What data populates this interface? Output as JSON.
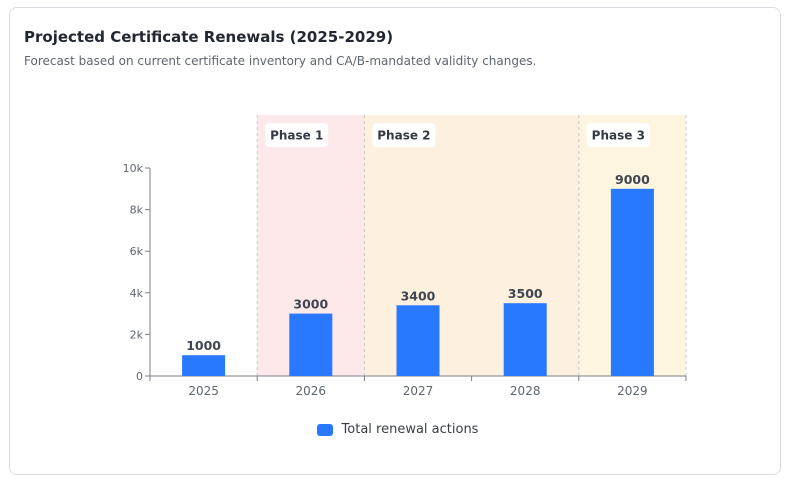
{
  "card": {
    "title": "Projected Certificate Renewals (2025-2029)",
    "subtitle": "Forecast based on current certificate inventory and CA/B-mandated validity changes."
  },
  "chart_data": {
    "type": "bar",
    "categories": [
      "2025",
      "2026",
      "2027",
      "2028",
      "2029"
    ],
    "series": [
      {
        "name": "Total renewal actions",
        "values": [
          1000,
          3000,
          3400,
          3500,
          9000
        ],
        "color": "#2979ff"
      }
    ],
    "ylim": [
      0,
      10000
    ],
    "yticks": [
      {
        "value": 0,
        "label": "0"
      },
      {
        "value": 2000,
        "label": "2k"
      },
      {
        "value": 4000,
        "label": "4k"
      },
      {
        "value": 6000,
        "label": "6k"
      },
      {
        "value": 8000,
        "label": "8k"
      },
      {
        "value": 10000,
        "label": "10k"
      }
    ],
    "data_labels": [
      "1000",
      "3000",
      "3400",
      "3500",
      "9000"
    ],
    "grid": false,
    "legend_position": "bottom-center",
    "phases": [
      {
        "label": "Phase 1",
        "start_category": "2026",
        "end_category": "2026",
        "color": "#fde8ea"
      },
      {
        "label": "Phase 2",
        "start_category": "2027",
        "end_category": "2028",
        "color": "#fdf0df"
      },
      {
        "label": "Phase 3",
        "start_category": "2029",
        "end_category": "2029",
        "color": "#fdf5df"
      }
    ]
  }
}
